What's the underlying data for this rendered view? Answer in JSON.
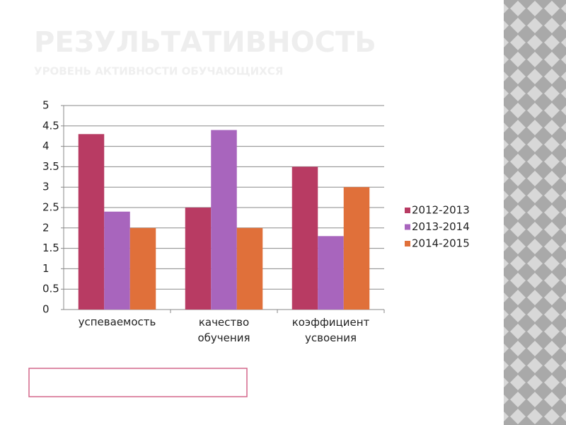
{
  "chart_data": {
    "type": "bar",
    "title": "РЕЗУЛЬТАТИВНОСТЬ",
    "subtitle": "УРОВЕНЬ АКТИВНОСТИ ОБУЧАЮЩИХСЯ",
    "categories": [
      "успеваемость",
      "качество обучения",
      "коэффициент усвоения"
    ],
    "series": [
      {
        "name": "2012-2013",
        "color": "#b83b63",
        "values": [
          4.3,
          2.5,
          3.5
        ]
      },
      {
        "name": "2013-2014",
        "color": "#a865bd",
        "values": [
          2.4,
          4.4,
          1.8
        ]
      },
      {
        "name": "2014-2015",
        "color": "#e0703a",
        "values": [
          2,
          2,
          3
        ]
      }
    ],
    "ylim": [
      0,
      5
    ],
    "yticks": [
      0,
      0.5,
      1,
      1.5,
      2,
      2.5,
      3,
      3.5,
      4,
      4.5,
      5
    ],
    "grid": true,
    "legend": "right"
  }
}
